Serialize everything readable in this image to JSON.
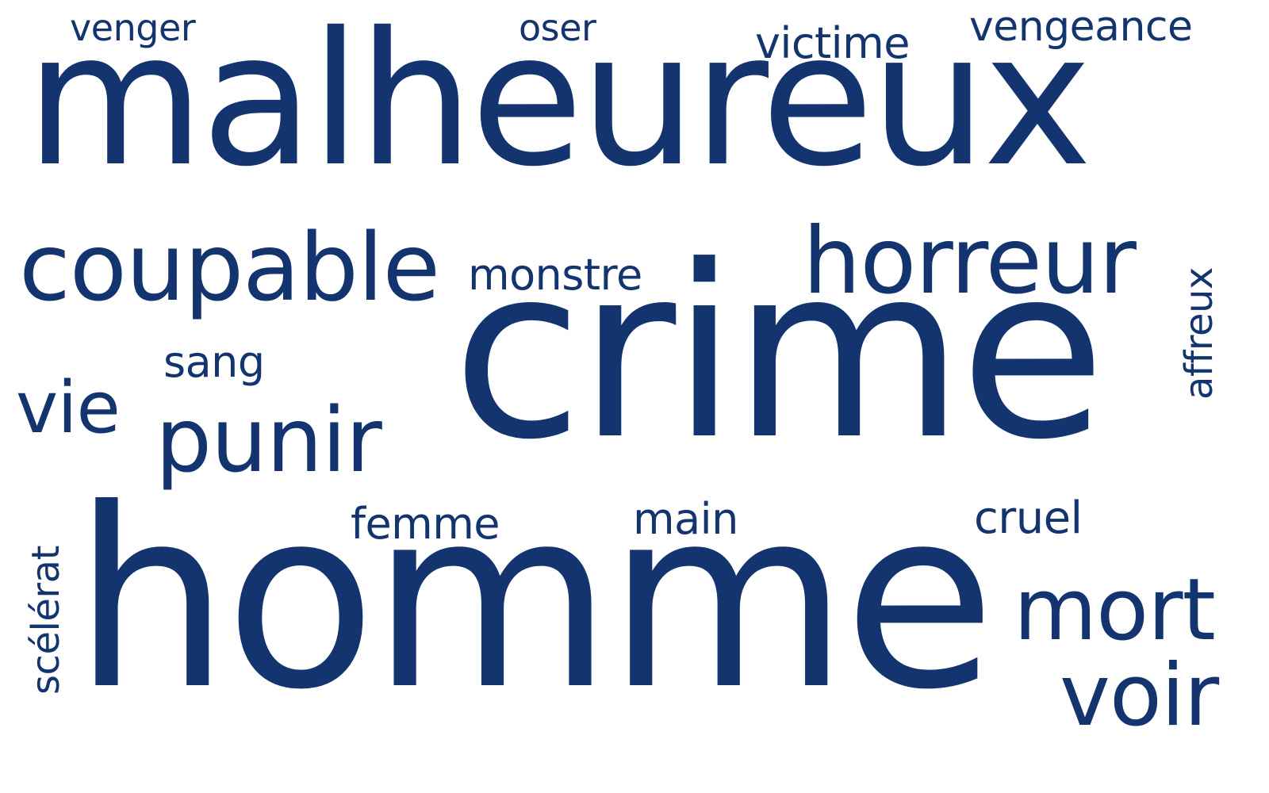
{
  "colors": {
    "word": "#13346f",
    "background": "#ffffff"
  },
  "words": {
    "malheureux": "malheureux",
    "crime": "crime",
    "homme": "homme",
    "coupable": "coupable",
    "horreur": "horreur",
    "punir": "punir",
    "monstre": "monstre",
    "vie": "vie",
    "sang": "sang",
    "femme": "femme",
    "main": "main",
    "cruel": "cruel",
    "mort": "mort",
    "voir": "voir",
    "venger": "venger",
    "oser": "oser",
    "victime": "victime",
    "vengeance": "vengeance",
    "affreux": "affreux",
    "scelerat": "scélérat"
  }
}
